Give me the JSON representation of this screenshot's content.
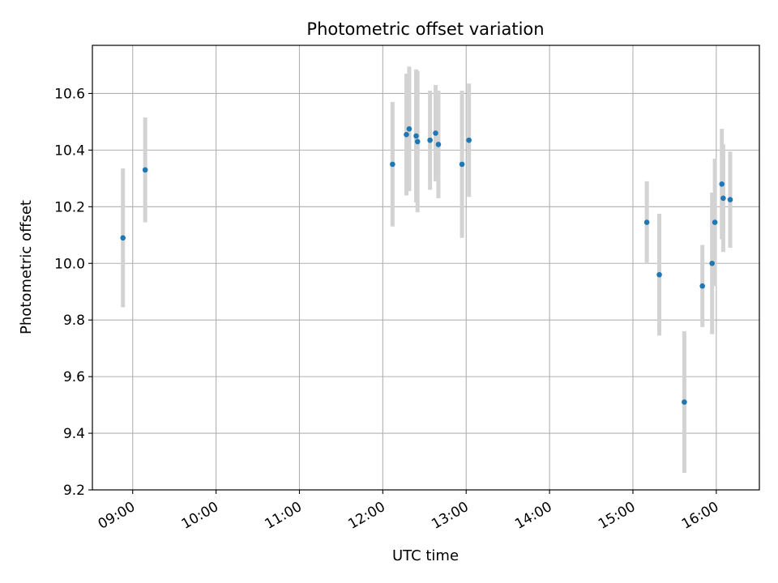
{
  "chart_data": {
    "type": "scatter",
    "title": "Photometric offset variation",
    "xlabel": "UTC time",
    "ylabel": "Photometric offset",
    "x_ticks": [
      "09:00",
      "10:00",
      "11:00",
      "12:00",
      "13:00",
      "14:00",
      "15:00",
      "16:00"
    ],
    "y_ticks": [
      "9.2",
      "9.4",
      "9.6",
      "9.8",
      "10.0",
      "10.2",
      "10.4",
      "10.6"
    ],
    "xlim": [
      "08:31",
      "16:31"
    ],
    "ylim": [
      9.2,
      10.77
    ],
    "grid": true,
    "legend": "none",
    "point_color": "#1f77b4",
    "errorbar_color": "#d3d3d3",
    "points": [
      {
        "x": "08:53",
        "y": 10.09,
        "yerr": 0.245
      },
      {
        "x": "09:09",
        "y": 10.33,
        "yerr": 0.185
      },
      {
        "x": "12:07",
        "y": 10.35,
        "yerr": 0.22
      },
      {
        "x": "12:17",
        "y": 10.455,
        "yerr": 0.215
      },
      {
        "x": "12:19",
        "y": 10.475,
        "yerr": 0.22
      },
      {
        "x": "12:24",
        "y": 10.45,
        "yerr": 0.235
      },
      {
        "x": "12:25",
        "y": 10.43,
        "yerr": 0.25
      },
      {
        "x": "12:34",
        "y": 10.435,
        "yerr": 0.175
      },
      {
        "x": "12:38",
        "y": 10.46,
        "yerr": 0.17
      },
      {
        "x": "12:40",
        "y": 10.42,
        "yerr": 0.19
      },
      {
        "x": "12:57",
        "y": 10.35,
        "yerr": 0.26
      },
      {
        "x": "13:02",
        "y": 10.435,
        "yerr": 0.2
      },
      {
        "x": "15:10",
        "y": 10.145,
        "yerr": 0.145
      },
      {
        "x": "15:19",
        "y": 9.96,
        "yerr": 0.215
      },
      {
        "x": "15:37",
        "y": 9.51,
        "yerr": 0.25
      },
      {
        "x": "15:50",
        "y": 9.92,
        "yerr": 0.145
      },
      {
        "x": "15:57",
        "y": 10.0,
        "yerr": 0.25
      },
      {
        "x": "15:59",
        "y": 10.145,
        "yerr": 0.225
      },
      {
        "x": "16:04",
        "y": 10.28,
        "yerr": 0.195
      },
      {
        "x": "16:05",
        "y": 10.23,
        "yerr": 0.19
      },
      {
        "x": "16:10",
        "y": 10.225,
        "yerr": 0.17
      }
    ]
  }
}
